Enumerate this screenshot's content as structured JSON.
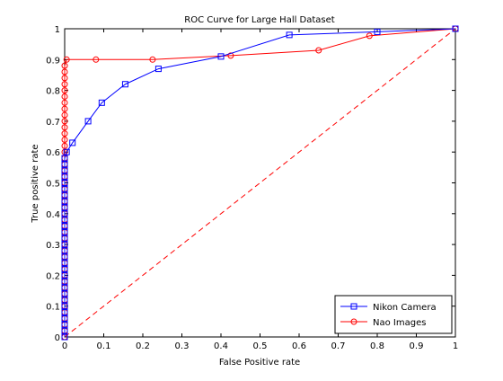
{
  "chart_data": {
    "type": "line",
    "title": "ROC Curve for Large Hall Dataset",
    "xlabel": "False Positive rate",
    "ylabel": "True positive rate",
    "xlim": [
      0,
      1
    ],
    "ylim": [
      0,
      1
    ],
    "xticks": [
      0,
      0.1,
      0.2,
      0.3,
      0.4,
      0.5,
      0.6,
      0.7,
      0.8,
      0.9,
      1
    ],
    "yticks": [
      0,
      0.1,
      0.2,
      0.3,
      0.4,
      0.5,
      0.6,
      0.7,
      0.8,
      0.9,
      1
    ],
    "x_tick_labels": [
      "0",
      "0.1",
      "0.2",
      "0.3",
      "0.4",
      "0.5",
      "0.6",
      "0.7",
      "0.8",
      "0.9",
      "1"
    ],
    "y_tick_labels": [
      "0",
      "0.1",
      "0.2",
      "0.3",
      "0.4",
      "0.5",
      "0.6",
      "0.7",
      "0.8",
      "0.9",
      "1"
    ],
    "grid": false,
    "legend_position": "bottom-right",
    "series": [
      {
        "name": "Nikon Camera",
        "color": "#0000ff",
        "marker": "square",
        "line_style": "solid",
        "points": [
          [
            0,
            0
          ],
          [
            0,
            0.02
          ],
          [
            0,
            0.04
          ],
          [
            0,
            0.06
          ],
          [
            0,
            0.08
          ],
          [
            0,
            0.1
          ],
          [
            0,
            0.12
          ],
          [
            0,
            0.14
          ],
          [
            0,
            0.16
          ],
          [
            0,
            0.18
          ],
          [
            0,
            0.2
          ],
          [
            0,
            0.22
          ],
          [
            0,
            0.24
          ],
          [
            0,
            0.26
          ],
          [
            0,
            0.28
          ],
          [
            0,
            0.3
          ],
          [
            0,
            0.32
          ],
          [
            0,
            0.34
          ],
          [
            0,
            0.36
          ],
          [
            0,
            0.38
          ],
          [
            0,
            0.4
          ],
          [
            0,
            0.42
          ],
          [
            0,
            0.44
          ],
          [
            0,
            0.46
          ],
          [
            0,
            0.48
          ],
          [
            0,
            0.5
          ],
          [
            0,
            0.52
          ],
          [
            0,
            0.54
          ],
          [
            0,
            0.56
          ],
          [
            0,
            0.58
          ],
          [
            0.005,
            0.6
          ],
          [
            0.02,
            0.63
          ],
          [
            0.06,
            0.7
          ],
          [
            0.095,
            0.76
          ],
          [
            0.155,
            0.82
          ],
          [
            0.24,
            0.87
          ],
          [
            0.4,
            0.91
          ],
          [
            0.575,
            0.98
          ],
          [
            0.8,
            0.99
          ],
          [
            1.0,
            1.0
          ]
        ]
      },
      {
        "name": "Nao Images",
        "color": "#ff0000",
        "marker": "circle",
        "line_style": "solid",
        "points": [
          [
            0,
            0
          ],
          [
            0,
            0.02
          ],
          [
            0,
            0.04
          ],
          [
            0,
            0.06
          ],
          [
            0,
            0.08
          ],
          [
            0,
            0.1
          ],
          [
            0,
            0.12
          ],
          [
            0,
            0.14
          ],
          [
            0,
            0.16
          ],
          [
            0,
            0.18
          ],
          [
            0,
            0.2
          ],
          [
            0,
            0.22
          ],
          [
            0,
            0.24
          ],
          [
            0,
            0.26
          ],
          [
            0,
            0.28
          ],
          [
            0,
            0.3
          ],
          [
            0,
            0.32
          ],
          [
            0,
            0.34
          ],
          [
            0,
            0.36
          ],
          [
            0,
            0.38
          ],
          [
            0,
            0.4
          ],
          [
            0,
            0.42
          ],
          [
            0,
            0.44
          ],
          [
            0,
            0.46
          ],
          [
            0,
            0.48
          ],
          [
            0,
            0.5
          ],
          [
            0,
            0.52
          ],
          [
            0,
            0.54
          ],
          [
            0,
            0.56
          ],
          [
            0,
            0.58
          ],
          [
            0,
            0.6
          ],
          [
            0,
            0.62
          ],
          [
            0,
            0.64
          ],
          [
            0,
            0.66
          ],
          [
            0,
            0.68
          ],
          [
            0,
            0.7
          ],
          [
            0,
            0.72
          ],
          [
            0,
            0.74
          ],
          [
            0,
            0.76
          ],
          [
            0,
            0.78
          ],
          [
            0,
            0.8
          ],
          [
            0,
            0.82
          ],
          [
            0,
            0.84
          ],
          [
            0,
            0.86
          ],
          [
            0,
            0.88
          ],
          [
            0.005,
            0.9
          ],
          [
            0.08,
            0.9
          ],
          [
            0.225,
            0.9
          ],
          [
            0.425,
            0.913
          ],
          [
            0.65,
            0.93
          ],
          [
            0.78,
            0.977
          ],
          [
            1.0,
            1.0
          ]
        ]
      },
      {
        "color": "#ff0000",
        "marker": "none",
        "line_style": "dashed",
        "points": [
          [
            0,
            0
          ],
          [
            1,
            1
          ]
        ]
      }
    ]
  }
}
